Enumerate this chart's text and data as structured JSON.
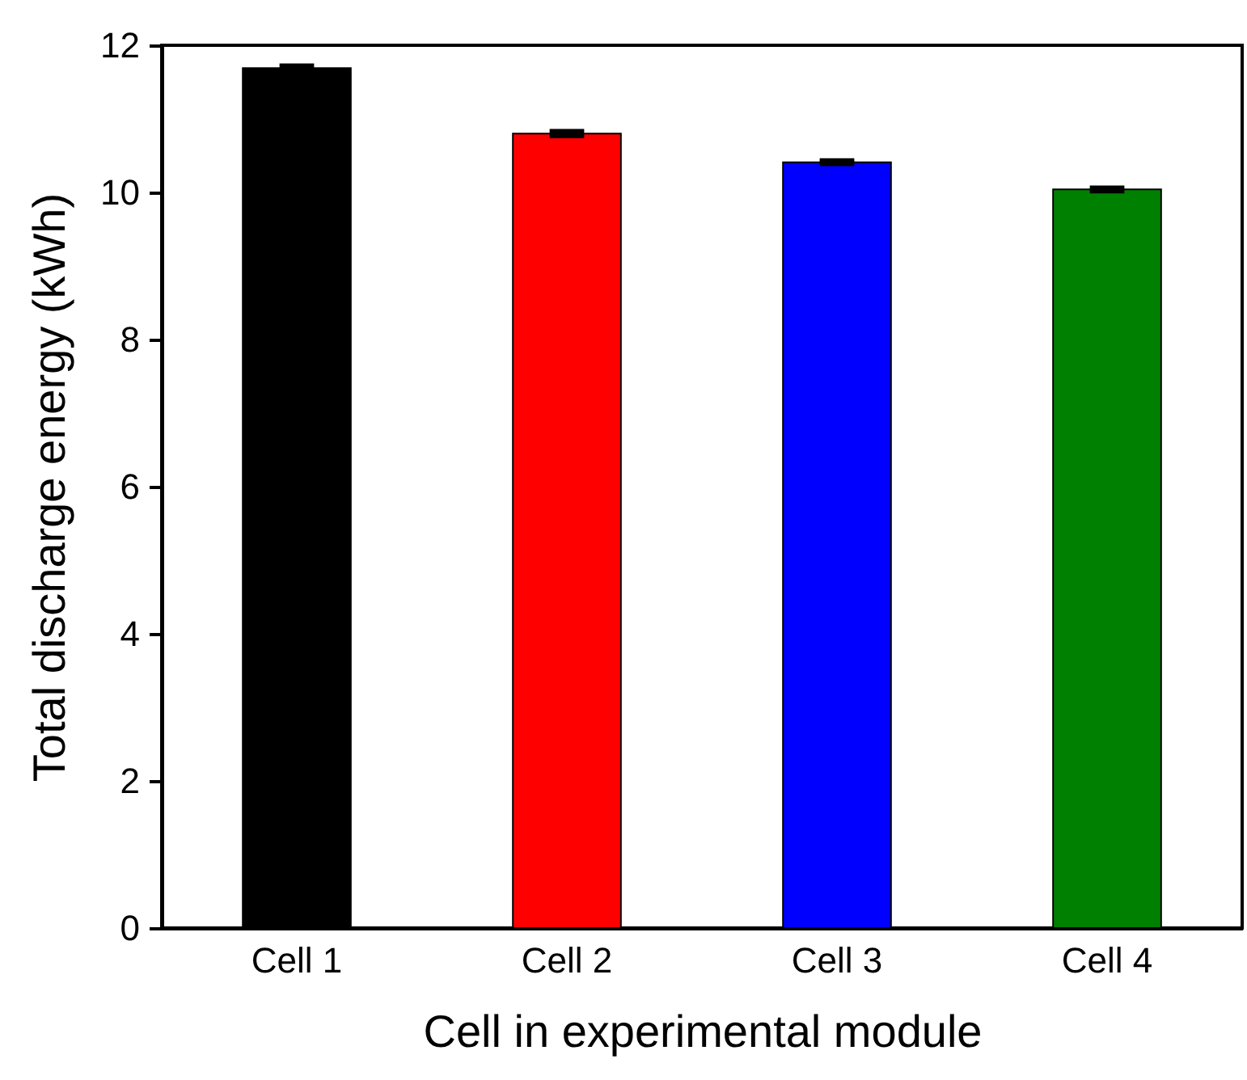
{
  "chart_data": {
    "type": "bar",
    "xlabel": "Cell in experimental module",
    "ylabel": "Total discharge energy (kWh)",
    "categories": [
      "Cell 1",
      "Cell 2",
      "Cell 3",
      "Cell 4"
    ],
    "values": [
      11.69,
      10.8,
      10.41,
      10.04
    ],
    "errors": [
      0.03,
      0.03,
      0.02,
      0.02
    ],
    "colors": [
      "#000000",
      "#ff0000",
      "#0000ff",
      "#008000"
    ],
    "ylim": [
      0,
      12
    ],
    "yticks": [
      0,
      2,
      4,
      6,
      8,
      10,
      12
    ],
    "grid": false
  }
}
